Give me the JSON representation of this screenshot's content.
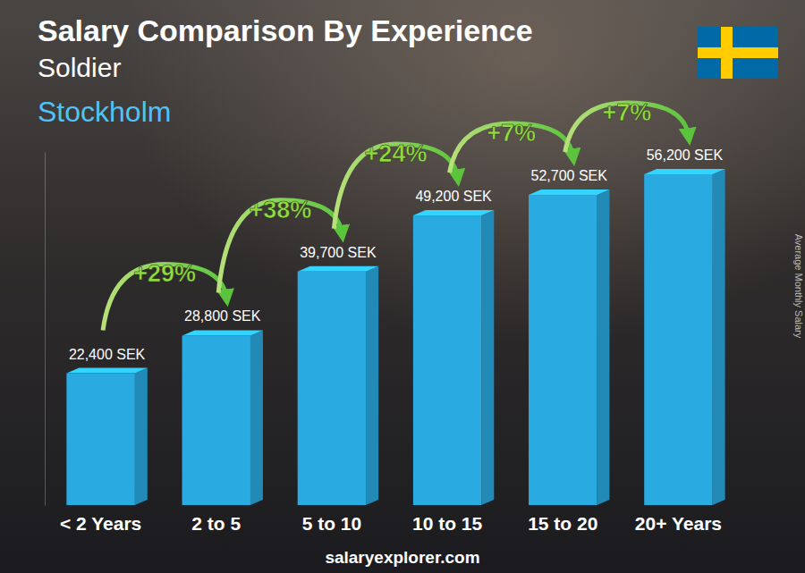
{
  "chart_data": {
    "type": "bar",
    "title": "Salary Comparison By Experience",
    "subtitle": "Soldier",
    "location": "Stockholm",
    "categories": [
      "< 2 Years",
      "2 to 5",
      "5 to 10",
      "10 to 15",
      "15 to 20",
      "20+ Years"
    ],
    "values": [
      22400,
      28800,
      39700,
      49200,
      52700,
      56200
    ],
    "value_labels": [
      "22,400 SEK",
      "28,800 SEK",
      "39,700 SEK",
      "49,200 SEK",
      "52,700 SEK",
      "56,200 SEK"
    ],
    "growth": [
      29,
      38,
      24,
      7,
      7
    ],
    "growth_labels": [
      "+29%",
      "+38%",
      "+24%",
      "+7%",
      "+7%"
    ],
    "y_label": "Average Monthly Salary",
    "source": "salaryexplorer.com",
    "color": "#29abe2",
    "ylim": [
      0,
      60000
    ],
    "yticks": [],
    "data_labels": true,
    "tick_labels": "x"
  }
}
